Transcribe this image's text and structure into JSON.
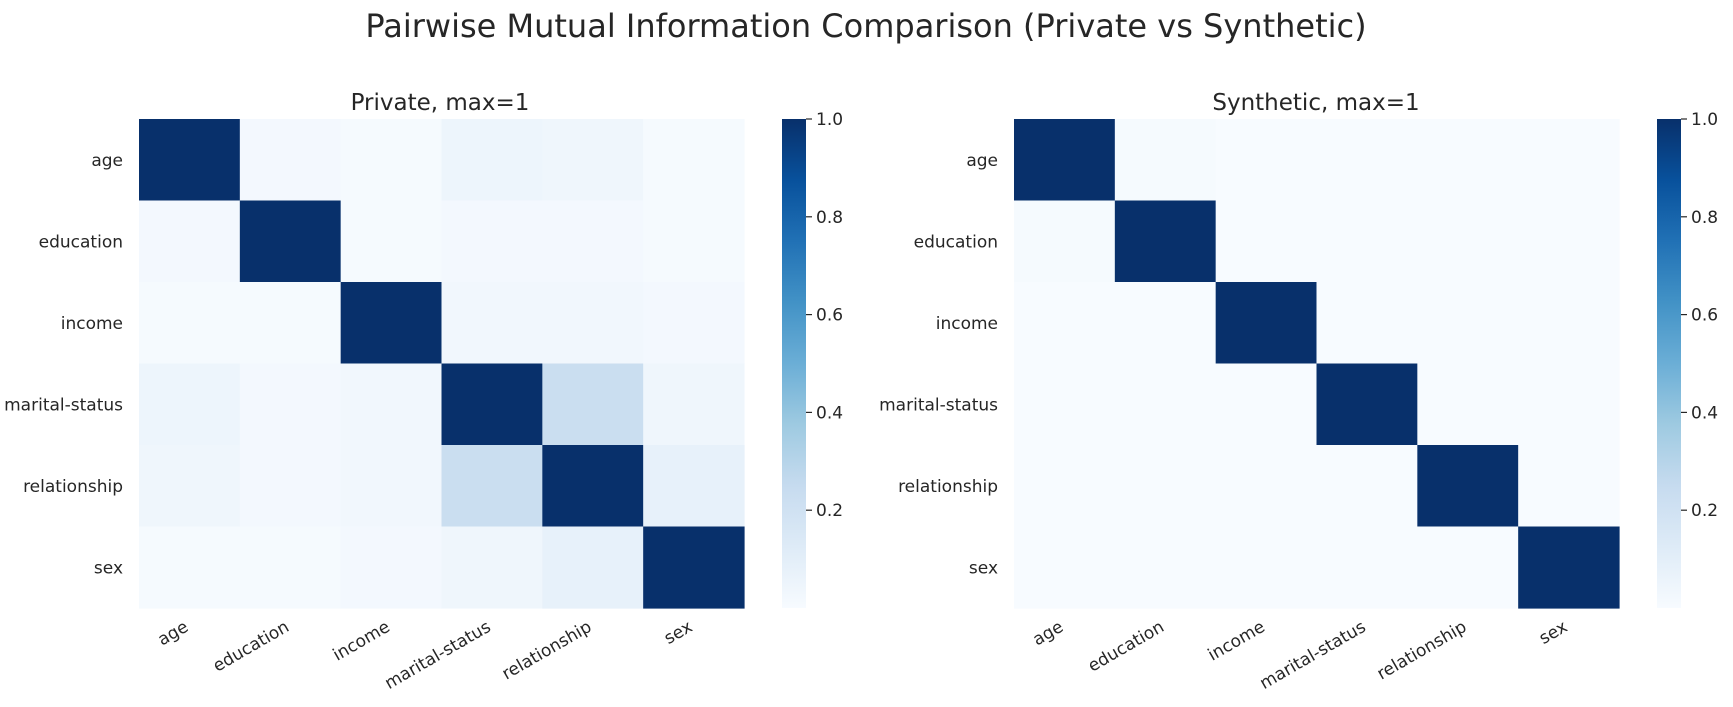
{
  "figure": {
    "title": "Pairwise Mutual Information Comparison (Private vs Synthetic)"
  },
  "colormap": {
    "name": "Blues",
    "stops": [
      "#f7fbff",
      "#deebf7",
      "#c6dbef",
      "#9ecae1",
      "#6baed6",
      "#4292c6",
      "#2171b5",
      "#08519c",
      "#08306b"
    ]
  },
  "chart_data": [
    {
      "type": "heatmap",
      "title": "Private, max=1",
      "row_labels": [
        "age",
        "education",
        "income",
        "marital-status",
        "relationship",
        "sex"
      ],
      "col_labels": [
        "age",
        "education",
        "income",
        "marital-status",
        "relationship",
        "sex"
      ],
      "values": [
        [
          1.0,
          0.02,
          0.01,
          0.05,
          0.04,
          0.01
        ],
        [
          0.02,
          1.0,
          0.01,
          0.02,
          0.02,
          0.01
        ],
        [
          0.01,
          0.01,
          1.0,
          0.03,
          0.03,
          0.02
        ],
        [
          0.05,
          0.02,
          0.03,
          1.0,
          0.23,
          0.04
        ],
        [
          0.04,
          0.02,
          0.03,
          0.23,
          1.0,
          0.08
        ],
        [
          0.01,
          0.01,
          0.02,
          0.04,
          0.08,
          1.0
        ]
      ],
      "colorbar": {
        "vmin": 0.0,
        "vmax": 1.0,
        "ticks": [
          0.2,
          0.4,
          0.6,
          0.8,
          1.0
        ],
        "tick_labels": [
          "0.2",
          "0.4",
          "0.6",
          "0.8",
          "1.0"
        ]
      }
    },
    {
      "type": "heatmap",
      "title": "Synthetic, max=1",
      "row_labels": [
        "age",
        "education",
        "income",
        "marital-status",
        "relationship",
        "sex"
      ],
      "col_labels": [
        "age",
        "education",
        "income",
        "marital-status",
        "relationship",
        "sex"
      ],
      "values": [
        [
          1.0,
          0.01,
          0.0,
          0.0,
          0.0,
          0.0
        ],
        [
          0.01,
          1.0,
          0.0,
          0.0,
          0.0,
          0.0
        ],
        [
          0.0,
          0.0,
          1.0,
          0.0,
          0.0,
          0.0
        ],
        [
          0.0,
          0.0,
          0.0,
          1.0,
          0.0,
          0.0
        ],
        [
          0.0,
          0.0,
          0.0,
          0.0,
          1.0,
          0.0
        ],
        [
          0.0,
          0.0,
          0.0,
          0.0,
          0.0,
          1.0
        ]
      ],
      "colorbar": {
        "vmin": 0.0,
        "vmax": 1.0,
        "ticks": [
          0.2,
          0.4,
          0.6,
          0.8,
          1.0
        ],
        "tick_labels": [
          "0.2",
          "0.4",
          "0.6",
          "0.8",
          "1.0"
        ]
      }
    }
  ]
}
